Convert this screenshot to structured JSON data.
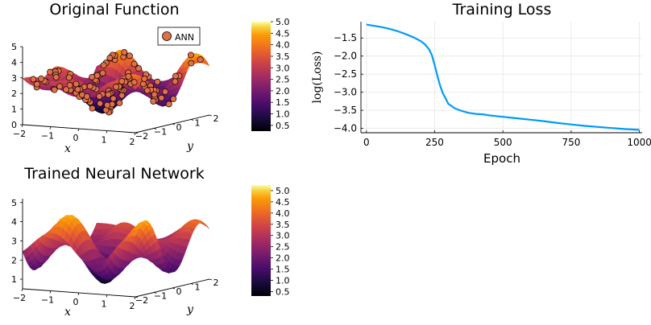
{
  "chart_data": [
    {
      "id": "original",
      "type": "surface3d",
      "title": "Original Function",
      "xlabel": "x",
      "ylabel": "y",
      "xlim": [
        -2,
        2
      ],
      "ylim": [
        -2,
        2
      ],
      "zlim": [
        0,
        5
      ],
      "xticks": [
        "−2",
        "−1",
        "0",
        "1",
        "2"
      ],
      "yticks": [
        "−2",
        "−1",
        "0",
        "1",
        "2"
      ],
      "zticks": [
        "0",
        "1",
        "2",
        "3",
        "4",
        "5"
      ],
      "legend": {
        "entries": [
          "ANN"
        ],
        "placement": "top-right"
      },
      "colorbar": {
        "range": [
          0.25,
          5.0
        ],
        "ticks": [
          "0.5",
          "1.0",
          "1.5",
          "2.0",
          "2.5",
          "3.0",
          "3.5",
          "4.0",
          "4.5",
          "5.0"
        ]
      },
      "series": [
        {
          "name": "ANN",
          "kind": "scatter",
          "points": 110,
          "marker_color": "#e26f46"
        }
      ]
    },
    {
      "id": "trained",
      "type": "surface3d",
      "title": "Trained Neural Network",
      "xlabel": "x",
      "ylabel": "y",
      "xlim": [
        -2,
        2
      ],
      "ylim": [
        -2,
        2
      ],
      "zlim": [
        0.5,
        5.2
      ],
      "xticks": [
        "−2",
        "−1",
        "0",
        "1",
        "2"
      ],
      "yticks": [
        "−2",
        "−1",
        "0",
        "1",
        "2"
      ],
      "zticks": [
        "1",
        "2",
        "3",
        "4",
        "5"
      ],
      "colorbar": {
        "range": [
          0.3,
          5.25
        ],
        "ticks": [
          "0.5",
          "1.0",
          "1.5",
          "2.0",
          "2.5",
          "3.0",
          "3.5",
          "4.0",
          "4.5",
          "5.0"
        ]
      }
    },
    {
      "id": "loss",
      "type": "line",
      "title": "Training Loss",
      "xlabel": "Epoch",
      "ylabel": "log(Loss)",
      "xlim": [
        -20,
        1010
      ],
      "ylim": [
        -4.12,
        -1.05
      ],
      "grid": true,
      "xticks": [
        0,
        250,
        500,
        750,
        1000
      ],
      "yticks": [
        -1.5,
        -2.0,
        -2.5,
        -3.0,
        -3.5,
        -4.0
      ],
      "ytick_labels": [
        "−1.5",
        "−2.0",
        "−2.5",
        "−3.0",
        "−3.5",
        "−4.0"
      ],
      "line_color": "#009af9",
      "x": [
        0,
        25,
        50,
        75,
        100,
        125,
        150,
        175,
        200,
        215,
        230,
        240,
        250,
        260,
        270,
        280,
        290,
        300,
        325,
        350,
        375,
        400,
        425,
        450,
        475,
        500,
        550,
        600,
        650,
        700,
        750,
        800,
        850,
        900,
        950,
        1000
      ],
      "y": [
        -1.13,
        -1.16,
        -1.19,
        -1.23,
        -1.28,
        -1.34,
        -1.41,
        -1.49,
        -1.59,
        -1.68,
        -1.82,
        -1.98,
        -2.25,
        -2.55,
        -2.82,
        -3.03,
        -3.17,
        -3.32,
        -3.45,
        -3.52,
        -3.57,
        -3.6,
        -3.61,
        -3.64,
        -3.66,
        -3.68,
        -3.72,
        -3.76,
        -3.8,
        -3.85,
        -3.89,
        -3.93,
        -3.96,
        -3.99,
        -4.02,
        -4.04
      ]
    }
  ]
}
